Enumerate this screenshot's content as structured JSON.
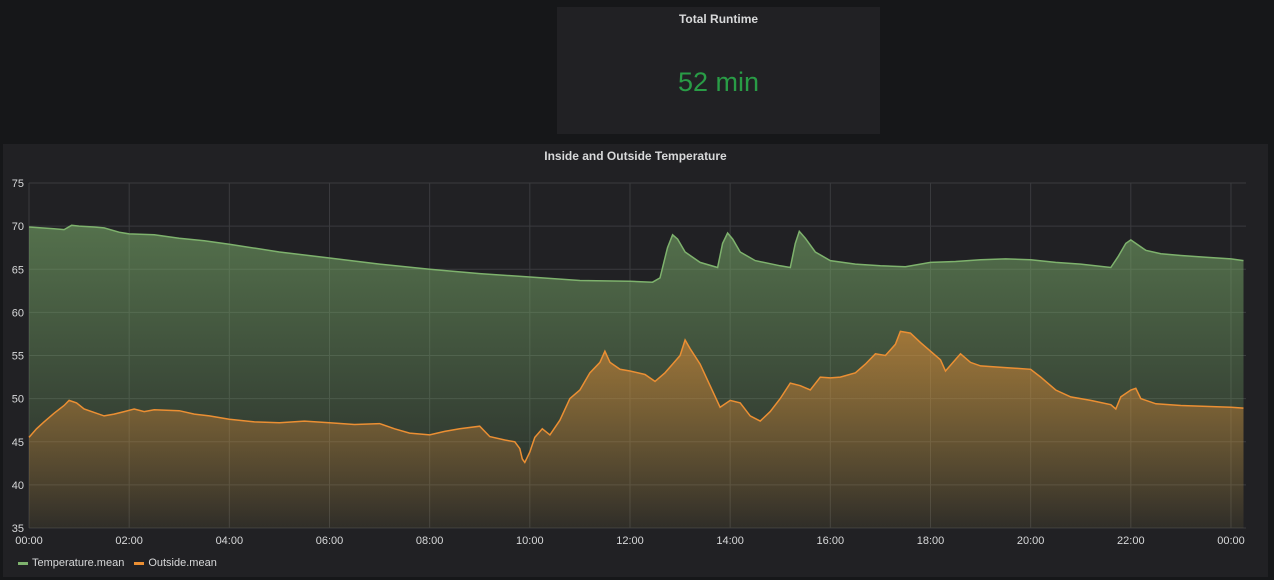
{
  "stat": {
    "title": "Total Runtime",
    "value": "52 min",
    "color": "#299c46"
  },
  "chart_data": {
    "type": "area",
    "title": "Inside and Outside Temperature",
    "ylim": [
      35,
      75
    ],
    "yticks": [
      "35",
      "40",
      "45",
      "50",
      "55",
      "60",
      "65",
      "70",
      "75"
    ],
    "xticks": [
      "00:00",
      "02:00",
      "04:00",
      "06:00",
      "08:00",
      "10:00",
      "12:00",
      "14:00",
      "16:00",
      "18:00",
      "20:00",
      "22:00",
      "00:00"
    ],
    "xlim_hours": [
      0,
      24.3
    ],
    "grid": true,
    "legend_position": "bottom-left",
    "series": [
      {
        "name": "Temperature.mean",
        "color": "#7eb26d",
        "points": [
          [
            0,
            69.9
          ],
          [
            0.5,
            69.7
          ],
          [
            0.7,
            69.6
          ],
          [
            0.85,
            70.1
          ],
          [
            1.0,
            70.0
          ],
          [
            1.3,
            69.9
          ],
          [
            1.5,
            69.8
          ],
          [
            1.8,
            69.3
          ],
          [
            2.0,
            69.1
          ],
          [
            2.5,
            69.0
          ],
          [
            3,
            68.6
          ],
          [
            3.5,
            68.3
          ],
          [
            4,
            67.9
          ],
          [
            5,
            67.0
          ],
          [
            6,
            66.3
          ],
          [
            7,
            65.6
          ],
          [
            8,
            65.0
          ],
          [
            9,
            64.5
          ],
          [
            10,
            64.1
          ],
          [
            11,
            63.7
          ],
          [
            12,
            63.6
          ],
          [
            12.45,
            63.5
          ],
          [
            12.6,
            64.0
          ],
          [
            12.75,
            67.5
          ],
          [
            12.85,
            69.0
          ],
          [
            12.95,
            68.5
          ],
          [
            13.1,
            67.0
          ],
          [
            13.4,
            65.8
          ],
          [
            13.75,
            65.2
          ],
          [
            13.85,
            68.0
          ],
          [
            13.95,
            69.2
          ],
          [
            14.05,
            68.5
          ],
          [
            14.2,
            67.0
          ],
          [
            14.5,
            66.0
          ],
          [
            15.0,
            65.4
          ],
          [
            15.2,
            65.2
          ],
          [
            15.3,
            68.0
          ],
          [
            15.38,
            69.4
          ],
          [
            15.5,
            68.6
          ],
          [
            15.7,
            67.0
          ],
          [
            16,
            66.0
          ],
          [
            16.5,
            65.6
          ],
          [
            17,
            65.4
          ],
          [
            17.5,
            65.3
          ],
          [
            18,
            65.8
          ],
          [
            18.5,
            65.9
          ],
          [
            19,
            66.1
          ],
          [
            19.5,
            66.2
          ],
          [
            20,
            66.1
          ],
          [
            20.5,
            65.8
          ],
          [
            21,
            65.6
          ],
          [
            21.6,
            65.2
          ],
          [
            21.75,
            66.5
          ],
          [
            21.9,
            68.0
          ],
          [
            22.0,
            68.4
          ],
          [
            22.1,
            68.0
          ],
          [
            22.3,
            67.2
          ],
          [
            22.6,
            66.8
          ],
          [
            23,
            66.6
          ],
          [
            23.5,
            66.4
          ],
          [
            24,
            66.2
          ],
          [
            24.25,
            66.0
          ]
        ]
      },
      {
        "name": "Outside.mean",
        "color": "#eb8f33",
        "points": [
          [
            0,
            45.5
          ],
          [
            0.15,
            46.5
          ],
          [
            0.3,
            47.3
          ],
          [
            0.5,
            48.3
          ],
          [
            0.7,
            49.2
          ],
          [
            0.8,
            49.8
          ],
          [
            0.95,
            49.5
          ],
          [
            1.1,
            48.8
          ],
          [
            1.3,
            48.4
          ],
          [
            1.5,
            48.0
          ],
          [
            1.7,
            48.2
          ],
          [
            1.9,
            48.5
          ],
          [
            2.1,
            48.8
          ],
          [
            2.3,
            48.5
          ],
          [
            2.5,
            48.7
          ],
          [
            3,
            48.6
          ],
          [
            3.3,
            48.2
          ],
          [
            3.6,
            48.0
          ],
          [
            4,
            47.6
          ],
          [
            4.5,
            47.3
          ],
          [
            5,
            47.2
          ],
          [
            5.5,
            47.4
          ],
          [
            6,
            47.2
          ],
          [
            6.5,
            47.0
          ],
          [
            7,
            47.1
          ],
          [
            7.3,
            46.5
          ],
          [
            7.6,
            46.0
          ],
          [
            8,
            45.8
          ],
          [
            8.3,
            46.2
          ],
          [
            8.6,
            46.5
          ],
          [
            9.0,
            46.8
          ],
          [
            9.2,
            45.6
          ],
          [
            9.5,
            45.2
          ],
          [
            9.7,
            45.0
          ],
          [
            9.8,
            44.2
          ],
          [
            9.85,
            43.0
          ],
          [
            9.9,
            42.6
          ],
          [
            10.0,
            43.8
          ],
          [
            10.1,
            45.5
          ],
          [
            10.25,
            46.5
          ],
          [
            10.4,
            45.8
          ],
          [
            10.6,
            47.5
          ],
          [
            10.8,
            50.0
          ],
          [
            11.0,
            51.0
          ],
          [
            11.2,
            53.0
          ],
          [
            11.4,
            54.2
          ],
          [
            11.5,
            55.5
          ],
          [
            11.6,
            54.2
          ],
          [
            11.8,
            53.4
          ],
          [
            12.0,
            53.2
          ],
          [
            12.3,
            52.8
          ],
          [
            12.5,
            52.0
          ],
          [
            12.7,
            53.0
          ],
          [
            12.85,
            54.0
          ],
          [
            13.0,
            55.0
          ],
          [
            13.1,
            56.8
          ],
          [
            13.2,
            55.8
          ],
          [
            13.4,
            54.0
          ],
          [
            13.6,
            51.5
          ],
          [
            13.8,
            49.0
          ],
          [
            14.0,
            49.8
          ],
          [
            14.2,
            49.5
          ],
          [
            14.4,
            48.0
          ],
          [
            14.6,
            47.4
          ],
          [
            14.8,
            48.5
          ],
          [
            15.0,
            50.0
          ],
          [
            15.2,
            51.8
          ],
          [
            15.4,
            51.5
          ],
          [
            15.6,
            51.0
          ],
          [
            15.8,
            52.5
          ],
          [
            16.0,
            52.4
          ],
          [
            16.2,
            52.5
          ],
          [
            16.5,
            53.0
          ],
          [
            16.7,
            54.0
          ],
          [
            16.9,
            55.2
          ],
          [
            17.1,
            55.0
          ],
          [
            17.3,
            56.3
          ],
          [
            17.4,
            57.8
          ],
          [
            17.6,
            57.6
          ],
          [
            17.8,
            56.5
          ],
          [
            18.0,
            55.5
          ],
          [
            18.2,
            54.5
          ],
          [
            18.3,
            53.2
          ],
          [
            18.45,
            54.2
          ],
          [
            18.6,
            55.2
          ],
          [
            18.8,
            54.2
          ],
          [
            19,
            53.8
          ],
          [
            19.5,
            53.6
          ],
          [
            20,
            53.4
          ],
          [
            20.2,
            52.5
          ],
          [
            20.5,
            51.0
          ],
          [
            20.8,
            50.2
          ],
          [
            21.2,
            49.8
          ],
          [
            21.6,
            49.3
          ],
          [
            21.7,
            48.8
          ],
          [
            21.8,
            50.2
          ],
          [
            22.0,
            51.0
          ],
          [
            22.1,
            51.2
          ],
          [
            22.2,
            50.0
          ],
          [
            22.5,
            49.4
          ],
          [
            23,
            49.2
          ],
          [
            23.5,
            49.1
          ],
          [
            24,
            49.0
          ],
          [
            24.25,
            48.9
          ]
        ]
      }
    ]
  }
}
